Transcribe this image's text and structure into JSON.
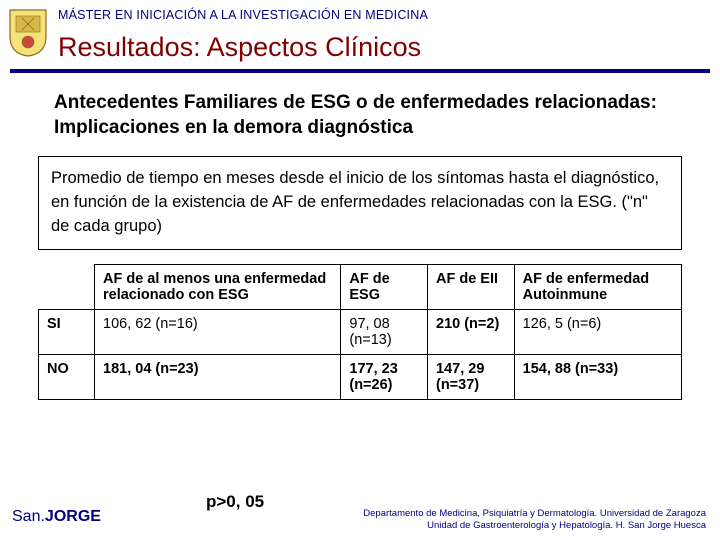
{
  "header": {
    "program": "MÁSTER EN INICIACIÓN A LA INVESTIGACIÓN EN MEDICINA",
    "title": "Resultados: Aspectos Clínicos"
  },
  "subtitle": "Antecedentes Familiares de ESG o de enfermedades relacionadas: Implicaciones en la demora diagnóstica",
  "description": "Promedio de tiempo en meses desde el inicio de los síntomas hasta el diagnóstico, en función de la existencia de AF de enfermedades relacionadas con la ESG. (\"n\" de cada grupo)",
  "table": {
    "columns": [
      "AF de al menos una enfermedad relacionado con ESG",
      "AF de ESG",
      "AF de EII",
      "AF de enfermedad Autoinmune"
    ],
    "rows": [
      {
        "label": "SI",
        "cells": [
          {
            "text": "106, 62 (n=16)",
            "bold": false
          },
          {
            "text": "97, 08 (n=13)",
            "bold": false
          },
          {
            "text": "210 (n=2)",
            "bold": true
          },
          {
            "text": "126, 5 (n=6)",
            "bold": false
          }
        ]
      },
      {
        "label": "NO",
        "cells": [
          {
            "text": "181, 04 (n=23)",
            "bold": true
          },
          {
            "text": "177, 23 (n=26)",
            "bold": true
          },
          {
            "text": "147, 29 (n=37)",
            "bold": true
          },
          {
            "text": "154, 88 (n=33)",
            "bold": true
          }
        ]
      }
    ]
  },
  "pvalue": "p>0, 05",
  "footer": {
    "brand_prefix": "San.",
    "brand_suffix": "JORGE",
    "dept_line1": "Departamento de Medicina, Psiquiatría y Dermatología. Universidad de Zaragoza",
    "dept_line2": "Unidad de Gastroenterología y Hepatología. H. San Jorge Huesca"
  },
  "colors": {
    "navy": "#000080",
    "maroon": "#800000",
    "black": "#000000",
    "white": "#ffffff"
  }
}
